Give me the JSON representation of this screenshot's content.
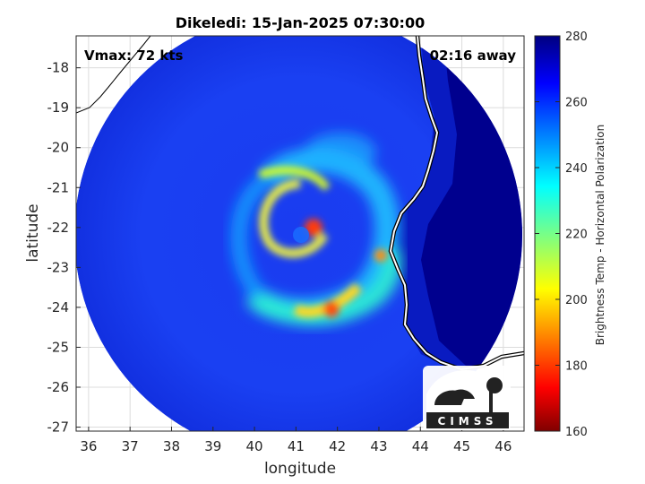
{
  "chart_data": {
    "type": "heatmap",
    "title": "Dikeledi: 15-Jan-2025 07:30:00",
    "xlabel": "longitude",
    "ylabel": "latitude",
    "xlim": [
      35.7,
      46.5
    ],
    "ylim": [
      -27.1,
      -17.2
    ],
    "xticks": [
      36,
      37,
      38,
      39,
      40,
      41,
      42,
      43,
      44,
      45,
      46
    ],
    "yticks": [
      -18,
      -19,
      -20,
      -21,
      -22,
      -23,
      -24,
      -25,
      -26,
      -27
    ],
    "grid": true,
    "annotations": {
      "vmax": "Vmax: 72 kts",
      "time_away": "02:16 away"
    },
    "colorbar": {
      "label": "Brightness Temp - Horizontal Polarization",
      "range": [
        160,
        280
      ],
      "ticks": [
        160,
        180,
        200,
        220,
        240,
        260,
        280
      ],
      "colormap": "jet"
    },
    "storm_center": {
      "lon": 41.5,
      "lat": -22.0
    },
    "swath_center": {
      "lon": 41.2,
      "lat": -22.1
    }
  },
  "logo": {
    "text": "CIMSS"
  }
}
